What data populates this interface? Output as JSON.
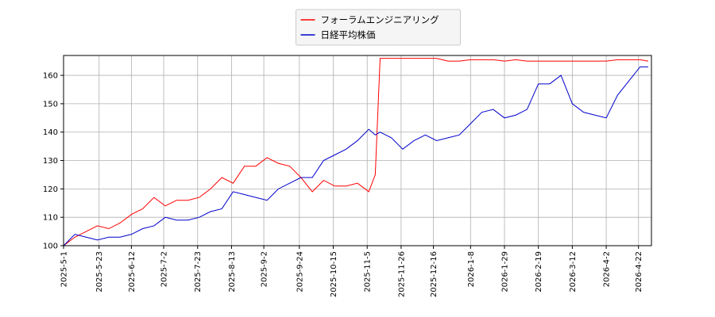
{
  "chart_data": {
    "type": "line",
    "x": [
      "2025-5-1",
      "2025-5-8",
      "2025-5-15",
      "2025-5-22",
      "2025-5-29",
      "2025-6-5",
      "2025-6-12",
      "2025-6-19",
      "2025-6-26",
      "2025-7-3",
      "2025-7-10",
      "2025-7-17",
      "2025-7-24",
      "2025-7-31",
      "2025-8-7",
      "2025-8-14",
      "2025-8-21",
      "2025-8-28",
      "2025-9-4",
      "2025-9-11",
      "2025-9-18",
      "2025-9-25",
      "2025-10-2",
      "2025-10-9",
      "2025-10-16",
      "2025-10-23",
      "2025-10-30",
      "2025-11-6",
      "2025-11-10",
      "2025-11-13",
      "2025-11-20",
      "2025-11-27",
      "2025-12-4",
      "2025-12-11",
      "2025-12-18",
      "2025-12-25",
      "2026-1-1",
      "2026-1-8",
      "2026-1-15",
      "2026-1-22",
      "2026-1-29",
      "2026-2-5",
      "2026-2-12",
      "2026-2-19",
      "2026-2-26",
      "2026-3-5",
      "2026-3-12",
      "2026-3-19",
      "2026-3-26",
      "2026-4-2",
      "2026-4-9",
      "2026-4-16",
      "2026-4-23",
      "2026-4-28"
    ],
    "series": [
      {
        "name": "フォーラムエンジニアリング",
        "color": "#ff0000",
        "values": [
          100,
          103,
          105,
          107,
          106,
          108,
          111,
          113,
          117,
          114,
          116,
          116,
          117,
          120,
          124,
          122,
          128,
          128,
          131,
          129,
          128,
          124,
          119,
          123,
          121,
          121,
          122,
          119,
          125,
          166,
          166,
          166,
          166,
          166,
          166,
          165,
          165,
          165.5,
          165.5,
          165.5,
          165,
          165.5,
          165,
          165,
          165,
          165,
          165,
          165,
          165,
          165,
          165.5,
          165.5,
          165.5,
          165
        ]
      },
      {
        "name": "日経平均株価",
        "color": "#0000cc",
        "values": [
          100,
          104,
          103,
          102,
          103,
          103,
          104,
          106,
          107,
          110,
          109,
          109,
          110,
          112,
          113,
          119,
          118,
          117,
          116,
          120,
          122,
          124,
          124,
          130,
          132,
          134,
          137,
          141,
          139,
          140,
          138,
          134,
          137,
          139,
          137,
          138,
          139,
          143,
          147,
          148,
          145,
          146,
          148,
          157,
          157,
          160,
          150,
          147,
          146,
          145,
          153,
          158,
          163,
          163
        ]
      }
    ],
    "xlim": [
      "2025-5-1",
      "2026-4-30"
    ],
    "xticks": [
      "2025-5-1",
      "2025-5-23",
      "2025-6-12",
      "2025-7-2",
      "2025-7-23",
      "2025-8-13",
      "2025-9-2",
      "2025-9-24",
      "2025-10-15",
      "2025-11-5",
      "2025-11-26",
      "2025-12-16",
      "2026-1-8",
      "2026-1-29",
      "2026-2-19",
      "2026-3-12",
      "2026-4-2",
      "2026-4-22"
    ],
    "ylim": [
      100,
      167
    ],
    "yticks": [
      100,
      110,
      120,
      130,
      140,
      150,
      160
    ],
    "grid": true,
    "legend": "upper center"
  }
}
